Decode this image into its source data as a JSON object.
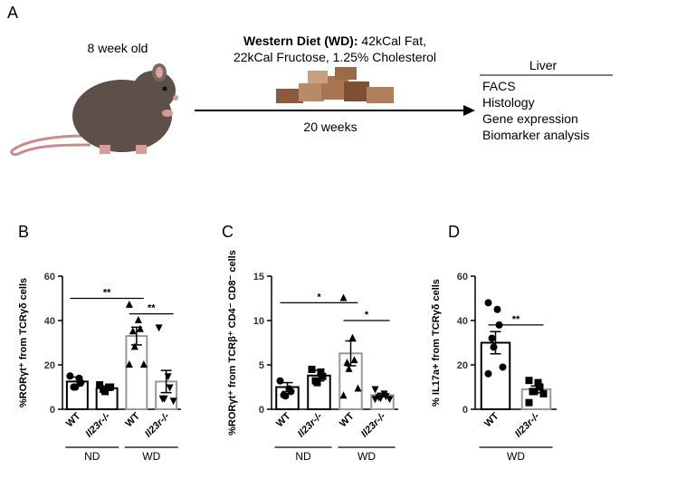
{
  "panel_a": {
    "label": "A",
    "age": "8 week old",
    "diet_bold": "Western Diet (WD):",
    "diet_rest": " 42kCal Fat,",
    "diet_line2": "22kCal Fructose,  1.25% Cholesterol",
    "duration": "20 weeks",
    "organ": "Liver",
    "analyses": [
      "FACS",
      "Histology",
      "Gene expression",
      "Biomarker analysis"
    ]
  },
  "chart_data": [
    {
      "type": "bar",
      "panel_label": "B",
      "y_label": "%RORγt⁺ from TCRγδ cells",
      "ylim": [
        0,
        60
      ],
      "yticks": [
        0,
        20,
        40,
        60
      ],
      "categories": [
        "WT",
        "Il23r-/-",
        "WT",
        "Il23r-/-"
      ],
      "values": [
        12.5,
        9.5,
        33,
        12.5
      ],
      "errors": [
        2,
        1,
        4,
        5
      ],
      "points": [
        [
          15,
          14,
          12,
          10,
          10
        ],
        [
          11,
          10,
          10,
          9,
          8
        ],
        [
          47,
          40,
          36,
          35,
          28,
          20,
          20
        ],
        [
          37,
          15,
          10,
          5,
          5,
          4
        ]
      ],
      "markers": [
        "circle",
        "square",
        "triangle",
        "down-triangle"
      ],
      "bar_colors": [
        "#000000",
        "#000000",
        "#999999",
        "#999999"
      ],
      "groups": [
        {
          "name": "ND",
          "categories": [
            0,
            1
          ]
        },
        {
          "name": "WD",
          "categories": [
            2,
            3
          ]
        }
      ],
      "significance": [
        {
          "label": "**",
          "between": [
            0,
            2
          ],
          "y": 50
        },
        {
          "label": "**",
          "between": [
            2,
            3
          ],
          "y": 43
        }
      ]
    },
    {
      "type": "bar",
      "panel_label": "C",
      "y_label": "%RORγt⁺ from TCRβ⁺ CD4⁻ CD8⁻ cells",
      "ylim": [
        0,
        15
      ],
      "yticks": [
        0,
        5,
        10,
        15
      ],
      "categories": [
        "WT",
        "Il23r-/-",
        "WT",
        "Il23r-/-"
      ],
      "values": [
        2.5,
        3.8,
        6.3,
        1.6
      ],
      "errors": [
        0.5,
        0.6,
        1.4,
        0.2
      ],
      "points": [
        [
          3.2,
          2.3,
          2,
          1.6,
          1.5
        ],
        [
          4.5,
          4.2,
          3.7,
          3.2,
          3
        ],
        [
          12.5,
          8,
          5.5,
          5.2,
          4.5,
          2.3,
          1.5
        ],
        [
          2.3,
          1.8,
          1.5,
          1.4,
          1.3,
          1.2,
          1.2
        ]
      ],
      "markers": [
        "circle",
        "square",
        "triangle",
        "down-triangle"
      ],
      "bar_colors": [
        "#000000",
        "#000000",
        "#999999",
        "#999999"
      ],
      "groups": [
        {
          "name": "ND",
          "categories": [
            0,
            1
          ]
        },
        {
          "name": "WD",
          "categories": [
            2,
            3
          ]
        }
      ],
      "significance": [
        {
          "label": "*",
          "between": [
            0,
            2
          ],
          "y": 12
        },
        {
          "label": "*",
          "between": [
            2,
            3
          ],
          "y": 10
        }
      ]
    },
    {
      "type": "bar",
      "panel_label": "D",
      "y_label": "% IL17a+ from TCRγδ cells",
      "ylim": [
        0,
        60
      ],
      "yticks": [
        0,
        20,
        40,
        60
      ],
      "categories": [
        "WT",
        "Il23r-/-"
      ],
      "values": [
        30,
        9
      ],
      "errors": [
        5,
        1.5
      ],
      "points": [
        [
          48,
          45,
          38,
          32,
          28,
          19,
          16
        ],
        [
          13,
          12,
          10,
          8,
          8,
          7,
          3
        ]
      ],
      "markers": [
        "circle",
        "square"
      ],
      "bar_colors": [
        "#000000",
        "#999999"
      ],
      "groups": [
        {
          "name": "WD",
          "categories": [
            0,
            1
          ]
        }
      ],
      "significance": [
        {
          "label": "**",
          "between": [
            0,
            1
          ],
          "y": 38
        }
      ]
    }
  ]
}
